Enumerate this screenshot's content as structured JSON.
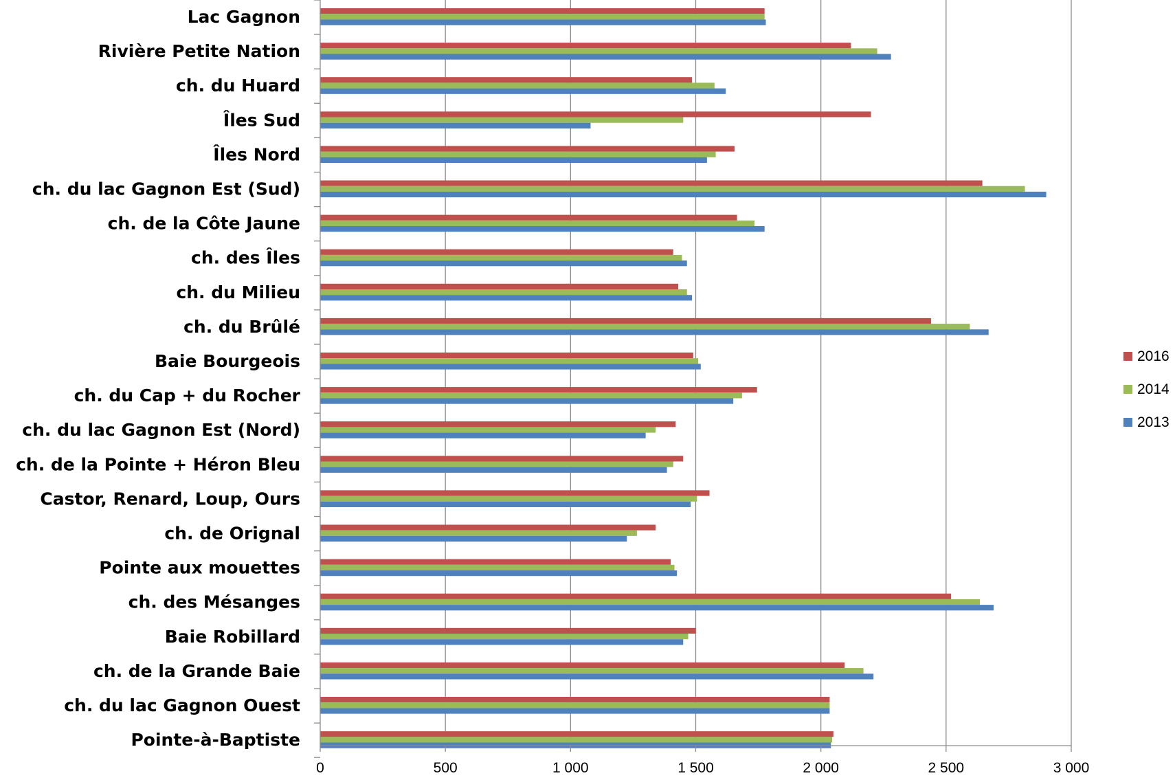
{
  "chart_data": {
    "type": "bar",
    "orientation": "horizontal",
    "categories": [
      "Lac Gagnon",
      "Rivière Petite Nation",
      "ch. du Huard",
      "Îles Sud",
      "Îles Nord",
      "ch. du lac Gagnon Est (Sud)",
      "ch. de la Côte Jaune",
      "ch. des Îles",
      "ch. du Milieu",
      "ch. du Brûlé",
      "Baie Bourgeois",
      "ch. du Cap + du Rocher",
      "ch. du lac Gagnon Est (Nord)",
      "ch. de la Pointe + Héron Bleu",
      "Castor, Renard, Loup, Ours",
      "ch. de Orignal",
      "Pointe aux mouettes",
      "ch. des Mésanges",
      "Baie Robillard",
      "ch. de la Grande Baie",
      "ch. du lac Gagnon Ouest",
      "Pointe-à-Baptiste"
    ],
    "series": [
      {
        "name": "2016",
        "color": "#c0504d",
        "values": [
          1775,
          2120,
          1485,
          2200,
          1655,
          2645,
          1665,
          1410,
          1430,
          2440,
          1490,
          1745,
          1420,
          1450,
          1555,
          1340,
          1400,
          2520,
          1500,
          2095,
          2035,
          2050
        ]
      },
      {
        "name": "2014",
        "color": "#9bbb59",
        "values": [
          1775,
          2225,
          1575,
          1450,
          1580,
          2815,
          1735,
          1445,
          1465,
          2595,
          1510,
          1685,
          1340,
          1410,
          1505,
          1265,
          1415,
          2635,
          1470,
          2170,
          2035,
          2045
        ]
      },
      {
        "name": "2013",
        "color": "#4f81bd",
        "values": [
          1780,
          2280,
          1620,
          1080,
          1545,
          2900,
          1775,
          1465,
          1485,
          2670,
          1520,
          1650,
          1300,
          1385,
          1480,
          1225,
          1425,
          2690,
          1450,
          2210,
          2035,
          2040
        ]
      }
    ],
    "x_ticks": [
      "0",
      "500",
      "1 000",
      "1 500",
      "2 000",
      "2 500",
      "3 000"
    ],
    "xlim": [
      0,
      3000
    ],
    "grid": true,
    "legend": {
      "position": "right",
      "entries": [
        "2016",
        "2014",
        "2013"
      ]
    }
  }
}
